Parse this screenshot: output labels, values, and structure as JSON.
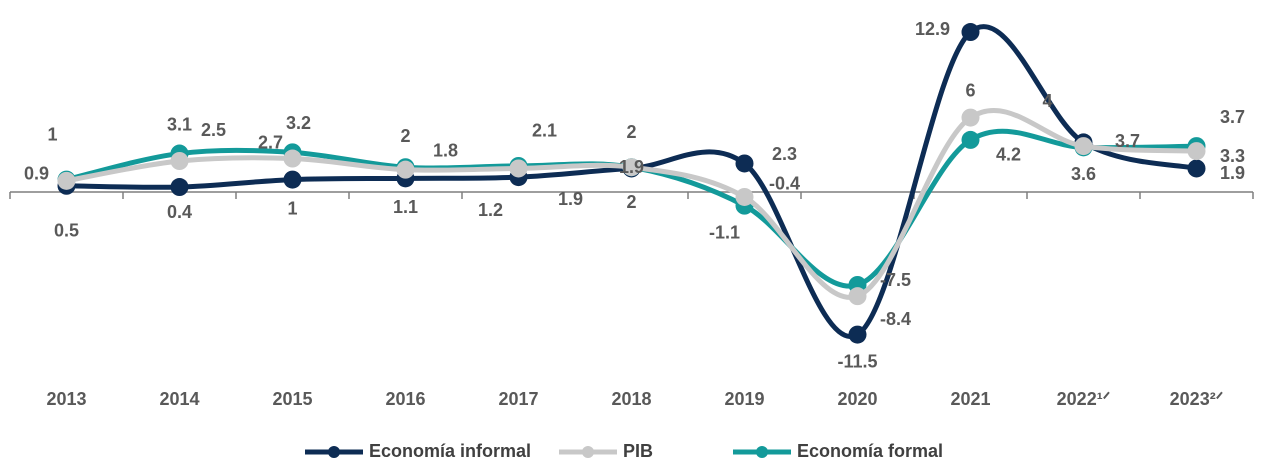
{
  "chart_data": {
    "type": "line",
    "categories": [
      "2013",
      "2014",
      "2015",
      "2016",
      "2017",
      "2018",
      "2019",
      "2020",
      "2021",
      "2022¹ᐟ",
      "2023²ᐟ"
    ],
    "series": [
      {
        "name": "Economía informal",
        "color": "#0d2c54",
        "values": [
          0.5,
          0.4,
          1.0,
          1.1,
          1.2,
          1.9,
          2.3,
          -11.5,
          12.9,
          4.0,
          1.9
        ]
      },
      {
        "name": "PIB",
        "color": "#c8c8c8",
        "values": [
          0.9,
          2.5,
          2.7,
          1.8,
          1.9,
          2.0,
          -0.4,
          -8.4,
          6.0,
          3.7,
          3.3
        ]
      },
      {
        "name": "Economía formal",
        "color": "#139a9a",
        "values": [
          1.0,
          3.1,
          3.2,
          2.0,
          2.1,
          2.0,
          -1.1,
          -7.5,
          4.2,
          3.6,
          3.7
        ]
      }
    ],
    "ylim": [
      -15,
      15
    ]
  }
}
